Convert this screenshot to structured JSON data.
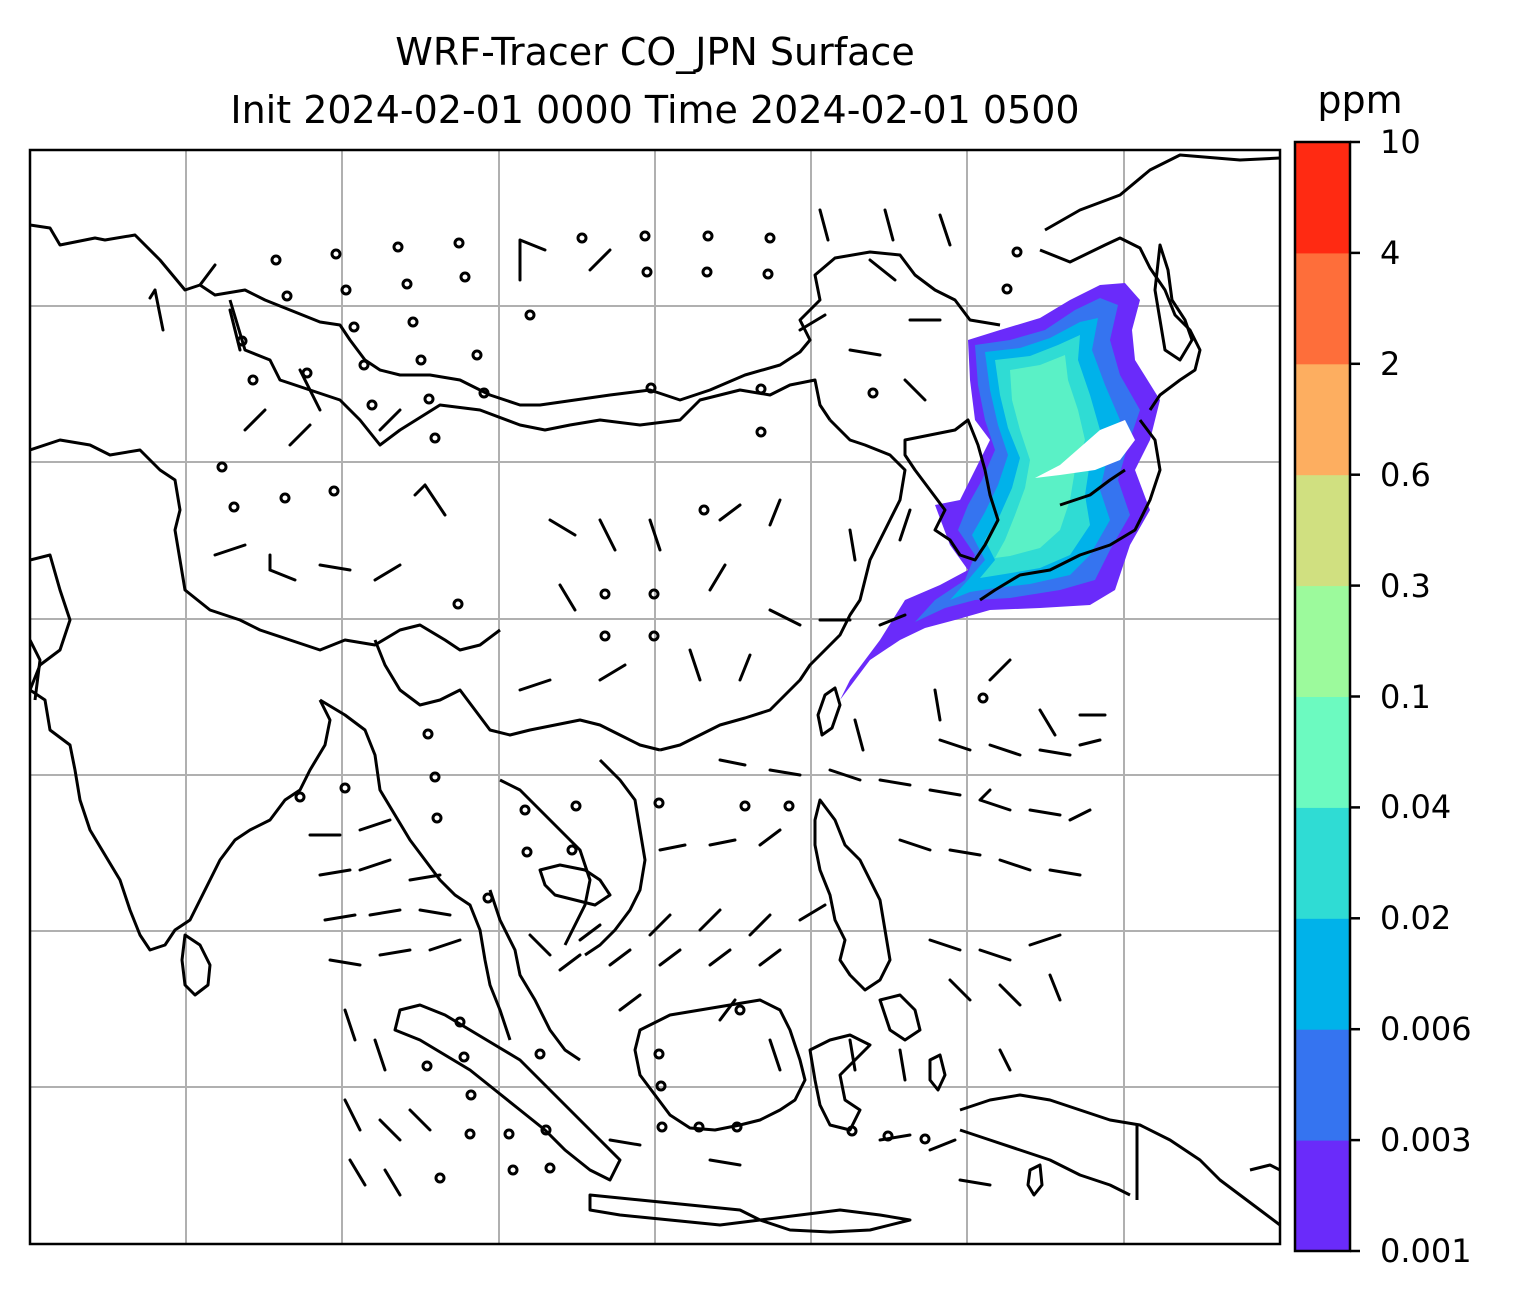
{
  "title": {
    "line1": "WRF-Tracer CO_JPN Surface",
    "line2": "Init 2024-02-01 0000 Time 2024-02-01 0500"
  },
  "colorbar": {
    "unit": "ppm",
    "levels": [
      "0.001",
      "0.003",
      "0.006",
      "0.02",
      "0.04",
      "0.1",
      "0.3",
      "0.6",
      "2",
      "4",
      "10"
    ],
    "colors": [
      "#6a2bfa",
      "#3574f0",
      "#00b2ea",
      "#2fdcd4",
      "#6cfac0",
      "#9cfa9c",
      "#d0e080",
      "#fdae60",
      "#fe6e3a",
      "#ff2a12"
    ]
  },
  "map": {
    "grid": true,
    "wind_barbs": true
  }
}
